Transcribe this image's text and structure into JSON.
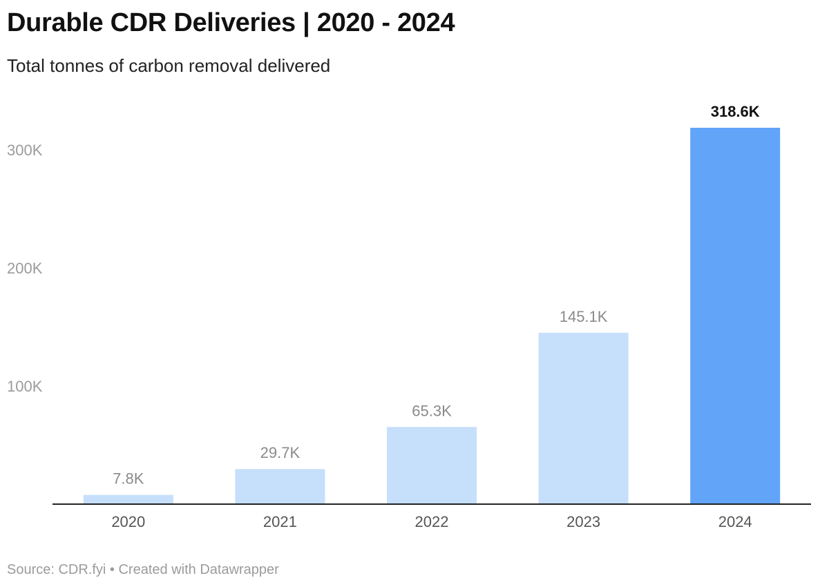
{
  "chart_data": {
    "type": "bar",
    "title": "Durable CDR Deliveries | 2020 - 2024",
    "subtitle": "Total tonnes of carbon removal delivered",
    "categories": [
      "2020",
      "2021",
      "2022",
      "2023",
      "2024"
    ],
    "values": [
      7800,
      29700,
      65300,
      145100,
      318600
    ],
    "value_labels": [
      "7.8K",
      "29.7K",
      "65.3K",
      "145.1K",
      "318.6K"
    ],
    "highlight_index": 4,
    "ylim": [
      0,
      318600
    ],
    "yticks": [
      100000,
      200000,
      300000
    ],
    "ytick_labels": [
      "100K",
      "200K",
      "300K"
    ],
    "xlabel": "",
    "ylabel": "",
    "colors": {
      "bar": "#c6dffb",
      "highlight": "#61a4f8",
      "axis": "#222222"
    },
    "source": "Source: CDR.fyi • Created with Datawrapper"
  }
}
